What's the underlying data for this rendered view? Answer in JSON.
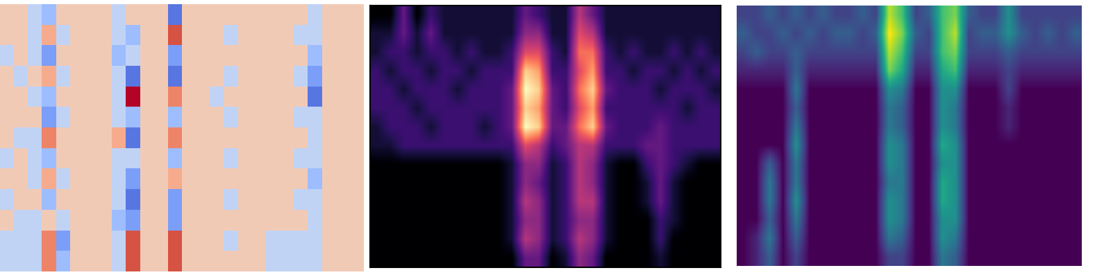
{
  "chart_data": [
    {
      "type": "heatmap",
      "color": "coolwarm",
      "tick_labels": false,
      "cells": [
        [
          1,
          1,
          -1,
          -2,
          1,
          1,
          1,
          1,
          -1,
          1,
          1,
          1,
          -4,
          1,
          1,
          1,
          1,
          1,
          1,
          1,
          1,
          1,
          -1,
          1,
          1,
          1
        ],
        [
          1,
          1,
          -1,
          2,
          -1,
          1,
          1,
          1,
          -1,
          -2,
          1,
          1,
          4,
          1,
          1,
          1,
          -1,
          1,
          1,
          1,
          1,
          -1,
          -1,
          1,
          1,
          1
        ],
        [
          -1,
          1,
          -1,
          -3,
          1,
          1,
          1,
          1,
          -2,
          -1,
          1,
          1,
          -3,
          1,
          1,
          1,
          1,
          1,
          1,
          1,
          1,
          1,
          -2,
          1,
          1,
          1
        ],
        [
          1,
          -1,
          1,
          2,
          -1,
          1,
          1,
          1,
          -1,
          -4,
          1,
          1,
          -4,
          1,
          1,
          1,
          -1,
          1,
          1,
          1,
          1,
          -1,
          -3,
          1,
          1,
          1
        ],
        [
          1,
          1,
          -1,
          -2,
          1,
          1,
          1,
          1,
          -1,
          5,
          1,
          1,
          3,
          1,
          1,
          -1,
          1,
          1,
          1,
          1,
          1,
          1,
          -4,
          1,
          1,
          1
        ],
        [
          1,
          1,
          1,
          -3,
          -1,
          1,
          1,
          1,
          -1,
          -2,
          1,
          1,
          -2,
          1,
          1,
          1,
          -1,
          1,
          1,
          1,
          1,
          -1,
          -1,
          1,
          1,
          1
        ],
        [
          1,
          -1,
          -1,
          3,
          1,
          1,
          1,
          1,
          2,
          -4,
          1,
          1,
          3,
          1,
          1,
          1,
          1,
          1,
          1,
          1,
          1,
          1,
          -1,
          1,
          1,
          1
        ],
        [
          -1,
          1,
          -1,
          -2,
          1,
          1,
          1,
          1,
          -1,
          -1,
          1,
          1,
          -2,
          1,
          1,
          1,
          -1,
          1,
          1,
          1,
          1,
          -1,
          -1,
          1,
          1,
          1
        ],
        [
          1,
          1,
          -1,
          2,
          -1,
          1,
          1,
          1,
          -1,
          -3,
          1,
          1,
          2,
          1,
          1,
          1,
          1,
          1,
          1,
          1,
          1,
          1,
          -2,
          1,
          1,
          1
        ],
        [
          -1,
          1,
          1,
          -2,
          1,
          1,
          1,
          1,
          -1,
          -4,
          1,
          1,
          -3,
          1,
          1,
          1,
          -1,
          1,
          1,
          1,
          1,
          -1,
          -1,
          1,
          1,
          1
        ],
        [
          1,
          -1,
          -1,
          1,
          -1,
          1,
          1,
          1,
          -2,
          -3,
          1,
          1,
          -3,
          1,
          1,
          1,
          1,
          1,
          1,
          1,
          1,
          1,
          -1,
          1,
          1,
          1
        ],
        [
          -1,
          -1,
          -1,
          3,
          -3,
          1,
          1,
          1,
          -1,
          4,
          1,
          1,
          4,
          1,
          1,
          1,
          -1,
          1,
          1,
          -1,
          -1,
          -1,
          -1,
          1,
          1,
          1
        ],
        [
          -1,
          -1,
          -1,
          3,
          -2,
          1,
          1,
          1,
          -1,
          4,
          1,
          1,
          4,
          1,
          1,
          1,
          1,
          1,
          1,
          -1,
          -1,
          -1,
          -1,
          1,
          1,
          1
        ]
      ]
    },
    {
      "type": "heatmap",
      "color": "magma",
      "tick_labels": false,
      "cells": [
        [
          0,
          0,
          3,
          0,
          2,
          1,
          1,
          1,
          1,
          1,
          1,
          3,
          2,
          1,
          1,
          5,
          3,
          1,
          1,
          1,
          1,
          1,
          1,
          1,
          1,
          1
        ],
        [
          1,
          1,
          3,
          1,
          3,
          1,
          1,
          1,
          1,
          1,
          1,
          4,
          4,
          1,
          1,
          6,
          5,
          1,
          1,
          1,
          1,
          1,
          1,
          1,
          1,
          1
        ],
        [
          1,
          2,
          2,
          1,
          2,
          2,
          1,
          2,
          1,
          1,
          2,
          6,
          6,
          2,
          1,
          7,
          7,
          2,
          1,
          2,
          1,
          1,
          2,
          1,
          2,
          1
        ],
        [
          2,
          1,
          2,
          2,
          1,
          2,
          2,
          1,
          2,
          2,
          2,
          9,
          8,
          2,
          2,
          6,
          8,
          2,
          2,
          1,
          2,
          2,
          1,
          2,
          1,
          2
        ],
        [
          2,
          2,
          1,
          2,
          2,
          2,
          1,
          2,
          2,
          2,
          3,
          10,
          9,
          3,
          2,
          7,
          9,
          3,
          2,
          2,
          2,
          1,
          2,
          2,
          2,
          1
        ],
        [
          2,
          2,
          2,
          1,
          2,
          2,
          2,
          2,
          2,
          2,
          3,
          9,
          8,
          3,
          2,
          6,
          8,
          2,
          2,
          2,
          2,
          2,
          2,
          1,
          2,
          2
        ],
        [
          1,
          2,
          2,
          2,
          1,
          2,
          2,
          2,
          1,
          2,
          3,
          10,
          9,
          3,
          3,
          7,
          9,
          3,
          2,
          2,
          2,
          3,
          2,
          2,
          2,
          2
        ],
        [
          1,
          1,
          2,
          2,
          2,
          2,
          2,
          2,
          2,
          2,
          2,
          6,
          5,
          2,
          3,
          5,
          5,
          2,
          2,
          2,
          3,
          3,
          2,
          2,
          2,
          2
        ],
        [
          0,
          0,
          0,
          0,
          0,
          0,
          0,
          0,
          0,
          0,
          1,
          4,
          4,
          1,
          2,
          5,
          4,
          1,
          0,
          0,
          2,
          3,
          2,
          1,
          0,
          0
        ],
        [
          0,
          0,
          0,
          0,
          0,
          0,
          0,
          0,
          0,
          0,
          1,
          4,
          3,
          1,
          2,
          5,
          4,
          1,
          0,
          0,
          1,
          3,
          1,
          0,
          0,
          0
        ],
        [
          0,
          0,
          0,
          0,
          0,
          0,
          0,
          0,
          0,
          0,
          1,
          5,
          4,
          1,
          2,
          5,
          5,
          1,
          0,
          0,
          1,
          3,
          1,
          0,
          0,
          0
        ],
        [
          0,
          0,
          0,
          0,
          0,
          0,
          0,
          0,
          0,
          0,
          1,
          4,
          4,
          1,
          2,
          4,
          4,
          1,
          0,
          0,
          0,
          2,
          1,
          0,
          0,
          0
        ],
        [
          0,
          0,
          0,
          0,
          0,
          0,
          0,
          0,
          0,
          0,
          1,
          5,
          4,
          1,
          2,
          5,
          4,
          1,
          0,
          0,
          0,
          2,
          0,
          0,
          0,
          0
        ],
        [
          0,
          0,
          0,
          0,
          0,
          0,
          0,
          0,
          0,
          0,
          0,
          3,
          3,
          0,
          1,
          4,
          3,
          0,
          0,
          0,
          0,
          1,
          0,
          0,
          0,
          0
        ]
      ]
    },
    {
      "type": "heatmap",
      "color": "viridis",
      "tick_labels": false,
      "cells": [
        [
          2,
          2,
          3,
          2,
          3,
          2,
          3,
          2,
          2,
          3,
          2,
          9,
          7,
          2,
          3,
          7,
          8,
          3,
          2,
          2,
          5,
          2,
          2,
          2,
          2,
          2
        ],
        [
          3,
          2,
          2,
          3,
          2,
          3,
          2,
          3,
          3,
          2,
          3,
          10,
          8,
          3,
          2,
          7,
          9,
          2,
          3,
          3,
          5,
          3,
          2,
          3,
          2,
          3
        ],
        [
          2,
          3,
          2,
          2,
          3,
          2,
          2,
          2,
          2,
          2,
          2,
          9,
          7,
          2,
          2,
          7,
          8,
          2,
          2,
          2,
          3,
          2,
          2,
          2,
          2,
          2
        ],
        [
          1,
          1,
          1,
          1,
          3,
          1,
          1,
          1,
          1,
          1,
          1,
          8,
          6,
          1,
          1,
          6,
          7,
          1,
          1,
          1,
          2,
          1,
          1,
          1,
          1,
          1
        ],
        [
          0,
          0,
          0,
          0,
          4,
          0,
          0,
          0,
          0,
          0,
          0,
          5,
          4,
          0,
          0,
          5,
          5,
          0,
          0,
          0,
          2,
          0,
          0,
          0,
          0,
          0
        ],
        [
          0,
          0,
          0,
          0,
          3,
          0,
          0,
          0,
          0,
          0,
          0,
          4,
          3,
          0,
          0,
          5,
          4,
          0,
          0,
          0,
          1,
          0,
          0,
          0,
          0,
          0
        ],
        [
          0,
          0,
          0,
          0,
          4,
          0,
          0,
          0,
          0,
          0,
          0,
          4,
          3,
          0,
          0,
          5,
          4,
          0,
          0,
          0,
          1,
          0,
          0,
          0,
          0,
          0
        ],
        [
          0,
          0,
          0,
          0,
          5,
          0,
          0,
          0,
          0,
          0,
          0,
          5,
          4,
          0,
          0,
          6,
          5,
          0,
          0,
          0,
          0,
          0,
          0,
          0,
          0,
          0
        ],
        [
          0,
          0,
          3,
          0,
          4,
          0,
          0,
          0,
          0,
          0,
          0,
          5,
          4,
          0,
          0,
          5,
          5,
          0,
          0,
          0,
          0,
          0,
          0,
          0,
          0,
          0
        ],
        [
          0,
          0,
          4,
          0,
          4,
          0,
          0,
          0,
          0,
          0,
          0,
          4,
          4,
          0,
          0,
          6,
          5,
          0,
          0,
          0,
          0,
          0,
          0,
          0,
          0,
          0
        ],
        [
          0,
          0,
          4,
          0,
          5,
          0,
          0,
          0,
          0,
          0,
          0,
          5,
          4,
          0,
          0,
          6,
          5,
          0,
          0,
          0,
          0,
          0,
          0,
          0,
          0,
          0
        ],
        [
          0,
          0,
          3,
          0,
          4,
          0,
          0,
          0,
          0,
          0,
          0,
          5,
          4,
          0,
          0,
          5,
          5,
          0,
          0,
          0,
          0,
          0,
          0,
          0,
          0,
          0
        ],
        [
          0,
          1,
          4,
          0,
          3,
          0,
          0,
          0,
          0,
          0,
          0,
          4,
          3,
          0,
          0,
          5,
          4,
          0,
          0,
          0,
          0,
          0,
          0,
          0,
          0,
          0
        ],
        [
          0,
          1,
          3,
          0,
          2,
          0,
          0,
          0,
          0,
          0,
          0,
          2,
          2,
          0,
          0,
          4,
          3,
          0,
          0,
          0,
          0,
          0,
          0,
          0,
          0,
          0
        ]
      ]
    }
  ]
}
